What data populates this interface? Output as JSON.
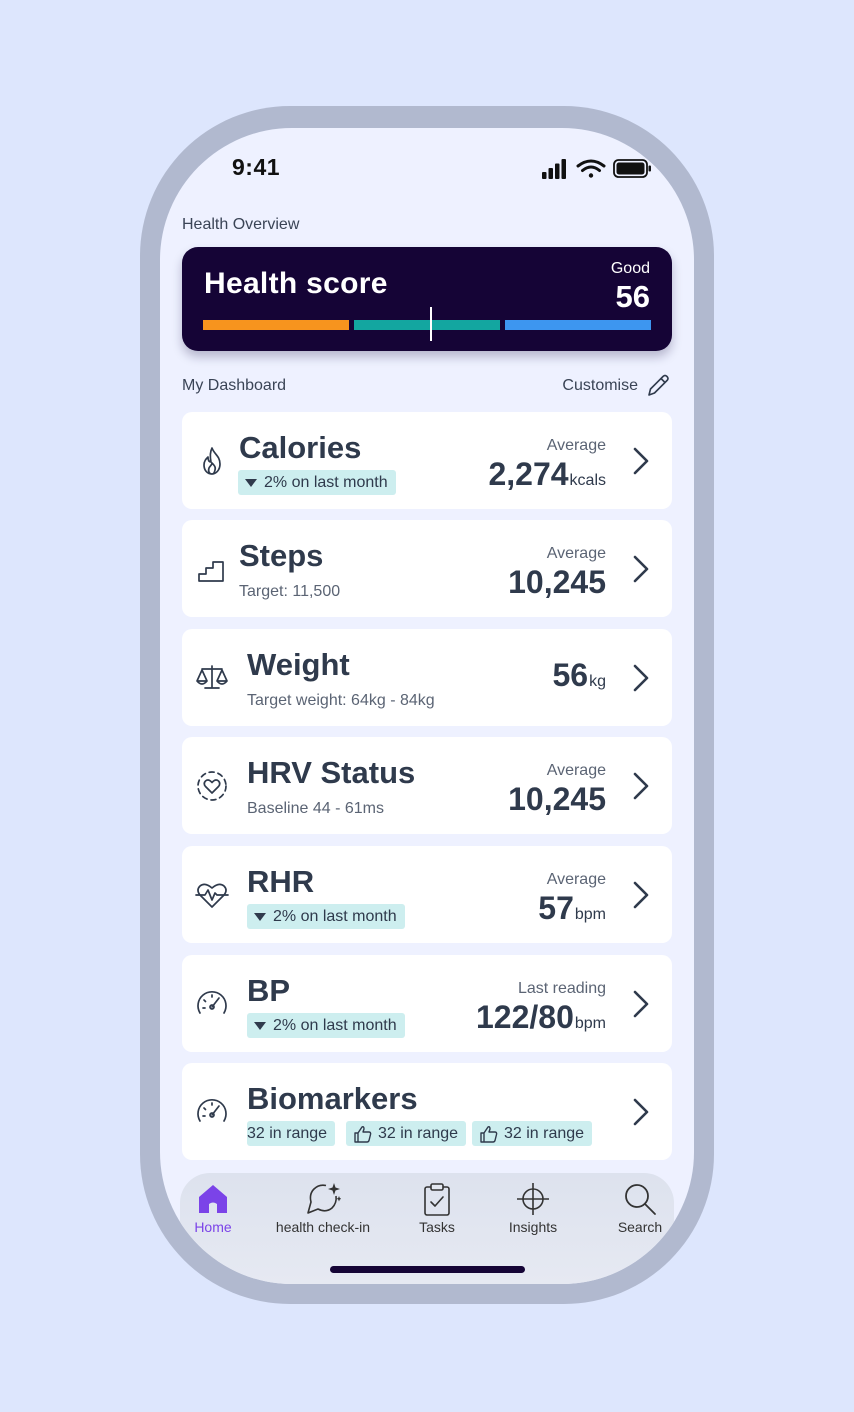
{
  "status_bar": {
    "time": "9:41"
  },
  "overview": {
    "label": "Health Overview",
    "score_title": "Health score",
    "rating": "Good",
    "score": "56",
    "score_position": 0.51,
    "bar_colors": [
      "#f7941e",
      "#13a6a0",
      "#3d96f0"
    ]
  },
  "dashboard": {
    "label": "My Dashboard",
    "customise_label": "Customise"
  },
  "metrics": {
    "calories": {
      "title": "Calories",
      "badge": "2% on last month",
      "caption": "Average",
      "value": "2,274",
      "unit": "kcals",
      "icon": "flame-icon"
    },
    "steps": {
      "title": "Steps",
      "sub": "Target: 11,500",
      "caption": "Average",
      "value": "10,245",
      "icon": "stairs-icon"
    },
    "weight": {
      "title": "Weight",
      "sub": "Target weight: 64kg - 84kg",
      "value": "56",
      "unit": "kg",
      "icon": "scale-icon"
    },
    "hrv": {
      "title": "HRV Status",
      "sub": "Baseline 44 - 61ms",
      "caption": "Average",
      "value": "10,245",
      "icon": "heart-circle-icon"
    },
    "rhr": {
      "title": "RHR",
      "badge": "2% on last month",
      "caption": "Average",
      "value": "57",
      "unit": "bpm",
      "icon": "heartbeat-icon"
    },
    "bp": {
      "title": "BP",
      "badge": "2% on last month",
      "caption": "Last reading",
      "value": "122/80",
      "unit": "bpm",
      "icon": "gauge-icon"
    },
    "biomarkers": {
      "title": "Biomarkers",
      "badges": [
        "32 in range",
        "32 in range",
        "32 in range"
      ],
      "icon": "gauge-icon"
    }
  },
  "tabs": [
    {
      "label": "Home",
      "icon": "home-icon",
      "active": true
    },
    {
      "label": "health check-in",
      "icon": "chat-sparkle-icon"
    },
    {
      "label": "Tasks",
      "icon": "clipboard-check-icon"
    },
    {
      "label": "Insights",
      "icon": "crosshair-icon"
    },
    {
      "label": "Search",
      "icon": "search-icon"
    }
  ],
  "colors": {
    "accent": "#7b43e8",
    "card_dark": "#150436",
    "badge_bg": "#cdeeef"
  }
}
